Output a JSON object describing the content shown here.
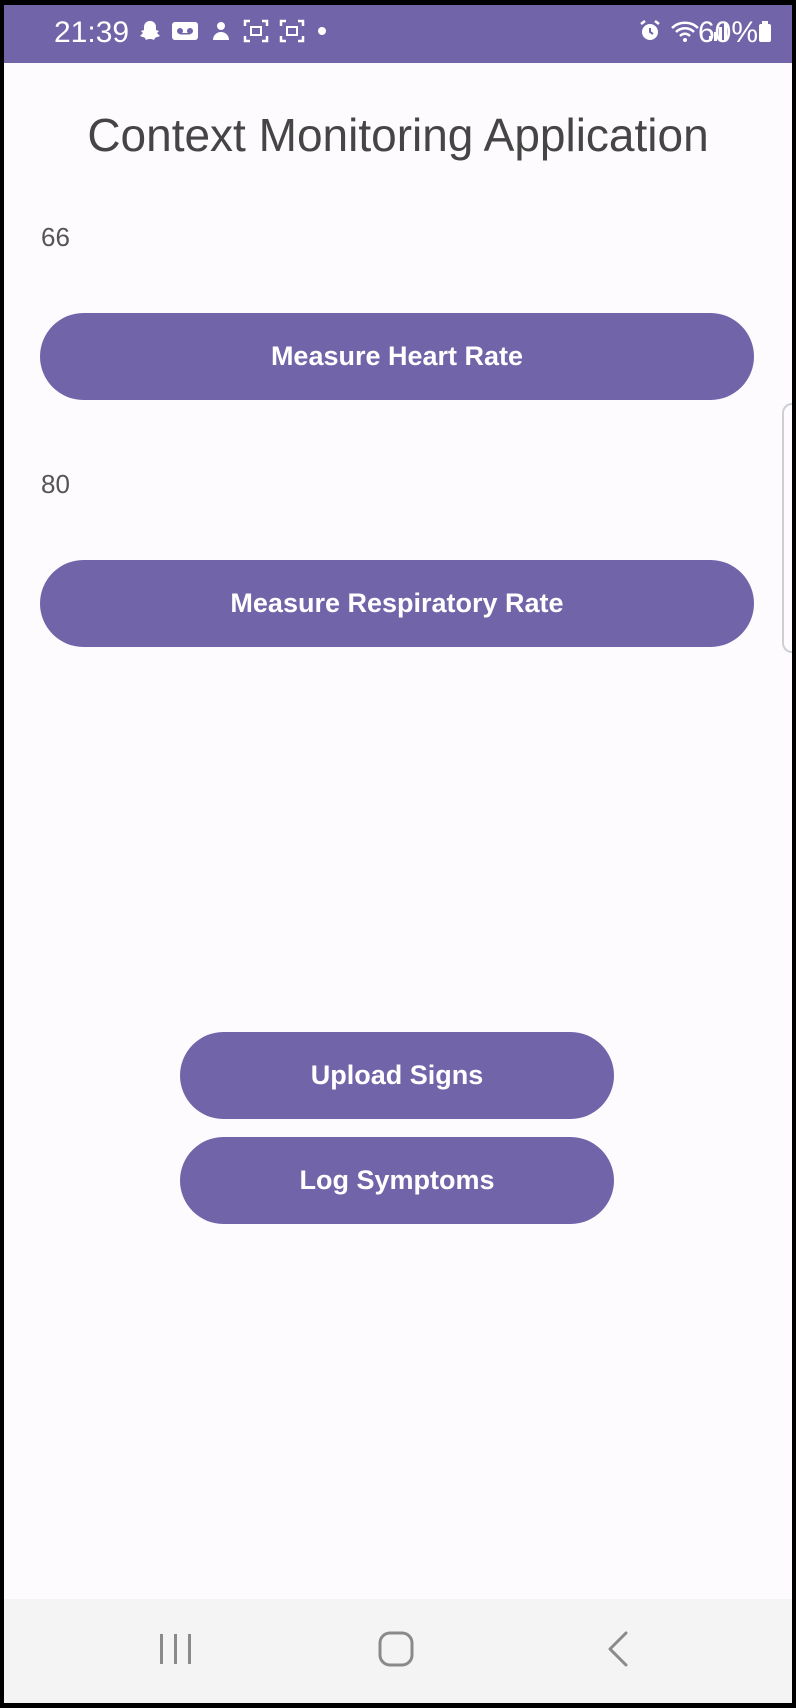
{
  "status_bar": {
    "time": "21:39",
    "battery": "60%",
    "background_color": "#7264a9",
    "icons_left": [
      "snapchat-icon",
      "voicemail-icon",
      "app-notification-icon",
      "screenshot-icon",
      "screenshot-icon",
      "more-notifications-dot"
    ],
    "icons_right": [
      "alarm-icon",
      "wifi-icon",
      "signal-icon",
      "battery-icon"
    ]
  },
  "app": {
    "title": "Context Monitoring Application",
    "accent_color": "#7264a9"
  },
  "heart_rate": {
    "value": "66",
    "button_label": "Measure Heart Rate"
  },
  "respiratory_rate": {
    "value": "80",
    "button_label": "Measure Respiratory Rate"
  },
  "actions": {
    "upload_label": "Upload Signs",
    "log_label": "Log Symptoms"
  },
  "navigation_bar": {
    "buttons": [
      "recent-apps-icon",
      "home-icon",
      "back-icon"
    ]
  }
}
